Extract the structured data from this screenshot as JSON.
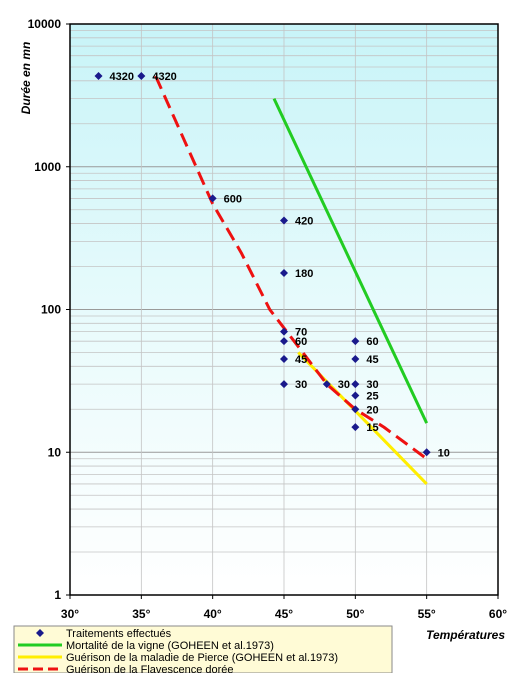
{
  "chart_data": {
    "type": "scatter",
    "title": "",
    "ylabel": "Durée en mn",
    "xlabel": "Températures",
    "yscale": "log",
    "ylim": [
      1,
      10000
    ],
    "xlim": [
      30,
      60
    ],
    "x_ticks": [
      "30°",
      "35°",
      "40°",
      "45°",
      "50°",
      "55°",
      "60°"
    ],
    "y_ticks": [
      "1",
      "10",
      "100",
      "1000",
      "10000"
    ],
    "grid": true,
    "legend_position": "bottom-left",
    "colors": {
      "traitements": "#1a1a8c",
      "mortalite": "#22cc22",
      "pierce": "#ffee00",
      "flavescence": "#ee1111",
      "plot_bg_top": "#c8f4f8",
      "plot_bg_bottom": "#ffffff"
    },
    "series": [
      {
        "name": "Traitements effectués",
        "kind": "markers",
        "points": [
          {
            "x": 32,
            "y": 4320,
            "label": "4320"
          },
          {
            "x": 35,
            "y": 4320,
            "label": "4320"
          },
          {
            "x": 40,
            "y": 600,
            "label": "600"
          },
          {
            "x": 45,
            "y": 420,
            "label": "420"
          },
          {
            "x": 45,
            "y": 180,
            "label": "180"
          },
          {
            "x": 45,
            "y": 70,
            "label": "70"
          },
          {
            "x": 45,
            "y": 60,
            "label": "60"
          },
          {
            "x": 45,
            "y": 45,
            "label": "45"
          },
          {
            "x": 45,
            "y": 30,
            "label": "30"
          },
          {
            "x": 48,
            "y": 30,
            "label": "30"
          },
          {
            "x": 50,
            "y": 60,
            "label": "60"
          },
          {
            "x": 50,
            "y": 45,
            "label": "45"
          },
          {
            "x": 50,
            "y": 30,
            "label": "30"
          },
          {
            "x": 50,
            "y": 25,
            "label": "25"
          },
          {
            "x": 50,
            "y": 20,
            "label": "20"
          },
          {
            "x": 50,
            "y": 15,
            "label": "15"
          },
          {
            "x": 55,
            "y": 10,
            "label": "10"
          }
        ]
      },
      {
        "name": "Mortalité de la vigne (GOHEEN et al.1973)",
        "kind": "line",
        "points": [
          {
            "x": 44.3,
            "y": 3000
          },
          {
            "x": 55,
            "y": 16
          }
        ]
      },
      {
        "name": "Guérison de la maladie de Pierce (GOHEEN et al.1973)",
        "kind": "line",
        "points": [
          {
            "x": 46,
            "y": 50
          },
          {
            "x": 55,
            "y": 6
          }
        ]
      },
      {
        "name": "Guérison de la Flavescence dorée",
        "kind": "dashed-line",
        "points": [
          {
            "x": 36,
            "y": 4320
          },
          {
            "x": 40,
            "y": 550
          },
          {
            "x": 42,
            "y": 250
          },
          {
            "x": 44,
            "y": 100
          },
          {
            "x": 46,
            "y": 55
          },
          {
            "x": 48,
            "y": 30
          },
          {
            "x": 50,
            "y": 20
          },
          {
            "x": 52,
            "y": 15
          },
          {
            "x": 55,
            "y": 9
          }
        ]
      }
    ]
  }
}
